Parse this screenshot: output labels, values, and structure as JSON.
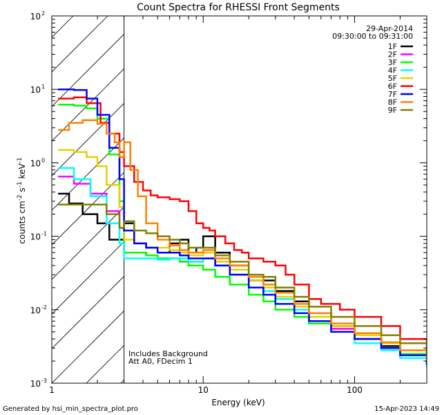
{
  "chart_data": {
    "type": "line",
    "title": "Count Spectra for RHESSI Front Segments",
    "xlabel": "Energy (keV)",
    "ylabel_parts": {
      "pre": "counts cm",
      "e1": "-2",
      "mid1": " s",
      "e2": "-1",
      "mid2": " keV",
      "e3": "-1"
    },
    "x_scale": "log",
    "y_scale": "log",
    "xlim": [
      1,
      300
    ],
    "ylim": [
      0.001,
      100
    ],
    "x_ticks": [
      {
        "value": 1,
        "label": "1"
      },
      {
        "value": 10,
        "label": "10"
      },
      {
        "value": 100,
        "label": "100"
      }
    ],
    "y_ticks": [
      {
        "value": 100,
        "base": "10",
        "exp": "2"
      },
      {
        "value": 10,
        "base": "10",
        "exp": "1"
      },
      {
        "value": 1,
        "base": "10",
        "exp": "0"
      },
      {
        "value": 0.1,
        "base": "10",
        "exp": "-1"
      },
      {
        "value": 0.01,
        "base": "10",
        "exp": "-2"
      },
      {
        "value": 0.001,
        "base": "10",
        "exp": "-3"
      }
    ],
    "hatched_region_kev": [
      1,
      3
    ],
    "date": "29-Apr-2014",
    "time_range": "09:30:00 to 09:31:00",
    "annotations": [
      "Includes Background",
      "Att A0, FDecim 1"
    ],
    "footer_left": "Generated by hsi_min_spectra_plot.pro",
    "footer_right": "15-Apr-2023 14:49",
    "series": [
      {
        "name": "1F",
        "color": "#000000",
        "points": [
          [
            1.1,
            0.38
          ],
          [
            1.3,
            0.28
          ],
          [
            1.6,
            0.2
          ],
          [
            2.0,
            0.15
          ],
          [
            2.4,
            0.09
          ],
          [
            3.0,
            0.15
          ],
          [
            3.5,
            0.08
          ],
          [
            4.2,
            0.07
          ],
          [
            5.0,
            0.06
          ],
          [
            6.0,
            0.08
          ],
          [
            7.0,
            0.09
          ],
          [
            8.0,
            0.06
          ],
          [
            9.0,
            0.07
          ],
          [
            10.0,
            0.1
          ],
          [
            12.0,
            0.06
          ],
          [
            15.0,
            0.04
          ],
          [
            20.0,
            0.025
          ],
          [
            25.0,
            0.025
          ],
          [
            30.0,
            0.018
          ],
          [
            40.0,
            0.013
          ],
          [
            50.0,
            0.009
          ],
          [
            70.0,
            0.006
          ],
          [
            100.0,
            0.004
          ],
          [
            150.0,
            0.0032
          ],
          [
            200.0,
            0.0025
          ],
          [
            300.0,
            0.002
          ]
        ]
      },
      {
        "name": "2F",
        "color": "#ff00ff",
        "points": [
          [
            1.1,
            0.65
          ],
          [
            1.4,
            0.52
          ],
          [
            1.8,
            0.38
          ],
          [
            2.3,
            0.22
          ],
          [
            2.8,
            0.13
          ],
          [
            3.0,
            0.06
          ],
          [
            3.5,
            0.06
          ],
          [
            4.2,
            0.055
          ],
          [
            5.0,
            0.05
          ],
          [
            6.0,
            0.05
          ],
          [
            7.0,
            0.045
          ],
          [
            8.0,
            0.045
          ],
          [
            10.0,
            0.05
          ],
          [
            12.0,
            0.04
          ],
          [
            15.0,
            0.03
          ],
          [
            20.0,
            0.02
          ],
          [
            25.0,
            0.02
          ],
          [
            30.0,
            0.014
          ],
          [
            40.0,
            0.01
          ],
          [
            50.0,
            0.007
          ],
          [
            70.0,
            0.0055
          ],
          [
            100.0,
            0.004
          ],
          [
            150.0,
            0.003
          ],
          [
            200.0,
            0.0025
          ],
          [
            300.0,
            0.0018
          ]
        ]
      },
      {
        "name": "3F",
        "color": "#00ff00",
        "points": [
          [
            1.1,
            6.2
          ],
          [
            1.4,
            6.0
          ],
          [
            1.7,
            5.5
          ],
          [
            2.0,
            4.0
          ],
          [
            2.4,
            1.3
          ],
          [
            2.8,
            0.3
          ],
          [
            3.0,
            0.06
          ],
          [
            3.5,
            0.06
          ],
          [
            4.2,
            0.055
          ],
          [
            5.0,
            0.05
          ],
          [
            6.0,
            0.05
          ],
          [
            7.0,
            0.045
          ],
          [
            8.0,
            0.04
          ],
          [
            10.0,
            0.035
          ],
          [
            12.0,
            0.028
          ],
          [
            15.0,
            0.022
          ],
          [
            20.0,
            0.016
          ],
          [
            25.0,
            0.013
          ],
          [
            30.0,
            0.01
          ],
          [
            40.0,
            0.008
          ],
          [
            50.0,
            0.0065
          ],
          [
            70.0,
            0.005
          ],
          [
            100.0,
            0.004
          ],
          [
            150.0,
            0.003
          ],
          [
            200.0,
            0.0025
          ],
          [
            300.0,
            0.0018
          ]
        ]
      },
      {
        "name": "4F",
        "color": "#00ffff",
        "points": [
          [
            1.1,
            0.85
          ],
          [
            1.4,
            0.6
          ],
          [
            1.8,
            0.35
          ],
          [
            2.3,
            0.15
          ],
          [
            2.8,
            0.08
          ],
          [
            3.0,
            0.05
          ],
          [
            3.5,
            0.05
          ],
          [
            4.2,
            0.05
          ],
          [
            5.0,
            0.048
          ],
          [
            6.0,
            0.05
          ],
          [
            7.0,
            0.05
          ],
          [
            8.0,
            0.045
          ],
          [
            10.0,
            0.05
          ],
          [
            12.0,
            0.04
          ],
          [
            15.0,
            0.03
          ],
          [
            20.0,
            0.02
          ],
          [
            25.0,
            0.018
          ],
          [
            30.0,
            0.014
          ],
          [
            40.0,
            0.01
          ],
          [
            50.0,
            0.007
          ],
          [
            70.0,
            0.005
          ],
          [
            100.0,
            0.0035
          ],
          [
            150.0,
            0.0028
          ],
          [
            200.0,
            0.0022
          ],
          [
            300.0,
            0.0016
          ]
        ]
      },
      {
        "name": "5F",
        "color": "#e8d000",
        "points": [
          [
            1.1,
            1.5
          ],
          [
            1.4,
            1.4
          ],
          [
            1.7,
            1.2
          ],
          [
            2.0,
            0.9
          ],
          [
            2.3,
            0.5
          ],
          [
            2.8,
            0.25
          ],
          [
            3.0,
            0.09
          ],
          [
            3.5,
            0.08
          ],
          [
            4.2,
            0.07
          ],
          [
            5.0,
            0.07
          ],
          [
            6.0,
            0.065
          ],
          [
            7.0,
            0.06
          ],
          [
            8.0,
            0.055
          ],
          [
            10.0,
            0.06
          ],
          [
            12.0,
            0.045
          ],
          [
            15.0,
            0.035
          ],
          [
            20.0,
            0.025
          ],
          [
            25.0,
            0.02
          ],
          [
            30.0,
            0.015
          ],
          [
            40.0,
            0.011
          ],
          [
            50.0,
            0.008
          ],
          [
            70.0,
            0.006
          ],
          [
            100.0,
            0.0045
          ],
          [
            150.0,
            0.0035
          ],
          [
            200.0,
            0.0028
          ],
          [
            300.0,
            0.002
          ]
        ]
      },
      {
        "name": "6F",
        "color": "#ff0000",
        "points": [
          [
            1.1,
            7.5
          ],
          [
            1.4,
            7.8
          ],
          [
            1.7,
            6.5
          ],
          [
            2.1,
            3.5
          ],
          [
            2.4,
            2.5
          ],
          [
            2.8,
            1.4
          ],
          [
            3.0,
            0.9
          ],
          [
            3.5,
            0.55
          ],
          [
            4.0,
            0.42
          ],
          [
            4.5,
            0.36
          ],
          [
            5.0,
            0.34
          ],
          [
            6.0,
            0.32
          ],
          [
            7.0,
            0.3
          ],
          [
            8.0,
            0.22
          ],
          [
            9.0,
            0.15
          ],
          [
            10.0,
            0.13
          ],
          [
            11.0,
            0.12
          ],
          [
            12.0,
            0.1
          ],
          [
            14.0,
            0.08
          ],
          [
            16.0,
            0.065
          ],
          [
            18.0,
            0.06
          ],
          [
            20.0,
            0.05
          ],
          [
            25.0,
            0.045
          ],
          [
            30.0,
            0.04
          ],
          [
            35.0,
            0.03
          ],
          [
            40.0,
            0.022
          ],
          [
            50.0,
            0.014
          ],
          [
            60.0,
            0.012
          ],
          [
            80.0,
            0.01
          ],
          [
            100.0,
            0.008
          ],
          [
            150.0,
            0.006
          ],
          [
            200.0,
            0.004
          ],
          [
            300.0,
            0.003
          ]
        ]
      },
      {
        "name": "7F",
        "color": "#0000ff",
        "points": [
          [
            1.1,
            10.0
          ],
          [
            1.4,
            9.8
          ],
          [
            1.7,
            7.5
          ],
          [
            2.0,
            4.5
          ],
          [
            2.4,
            1.6
          ],
          [
            2.8,
            0.6
          ],
          [
            3.0,
            0.12
          ],
          [
            3.5,
            0.08
          ],
          [
            4.2,
            0.07
          ],
          [
            5.0,
            0.06
          ],
          [
            6.0,
            0.06
          ],
          [
            7.0,
            0.055
          ],
          [
            8.0,
            0.05
          ],
          [
            10.0,
            0.05
          ],
          [
            12.0,
            0.04
          ],
          [
            15.0,
            0.03
          ],
          [
            20.0,
            0.02
          ],
          [
            25.0,
            0.016
          ],
          [
            30.0,
            0.012
          ],
          [
            40.0,
            0.009
          ],
          [
            50.0,
            0.007
          ],
          [
            70.0,
            0.005
          ],
          [
            100.0,
            0.004
          ],
          [
            150.0,
            0.003
          ],
          [
            200.0,
            0.0024
          ],
          [
            300.0,
            0.0018
          ]
        ]
      },
      {
        "name": "8F",
        "color": "#ff8000",
        "points": [
          [
            1.1,
            2.8
          ],
          [
            1.3,
            3.5
          ],
          [
            1.6,
            3.8
          ],
          [
            2.0,
            3.4
          ],
          [
            2.3,
            2.5
          ],
          [
            2.6,
            1.9
          ],
          [
            2.8,
            1.2
          ],
          [
            3.0,
            1.9
          ],
          [
            3.3,
            0.8
          ],
          [
            3.7,
            0.35
          ],
          [
            4.2,
            0.15
          ],
          [
            5.0,
            0.09
          ],
          [
            6.0,
            0.075
          ],
          [
            7.0,
            0.065
          ],
          [
            8.0,
            0.06
          ],
          [
            10.0,
            0.065
          ],
          [
            12.0,
            0.05
          ],
          [
            15.0,
            0.04
          ],
          [
            20.0,
            0.028
          ],
          [
            25.0,
            0.022
          ],
          [
            30.0,
            0.017
          ],
          [
            40.0,
            0.012
          ],
          [
            50.0,
            0.009
          ],
          [
            70.0,
            0.0065
          ],
          [
            100.0,
            0.0048
          ],
          [
            150.0,
            0.0036
          ],
          [
            200.0,
            0.0028
          ],
          [
            300.0,
            0.002
          ]
        ]
      },
      {
        "name": "9F",
        "color": "#808000",
        "points": [
          [
            1.1,
            0.27
          ],
          [
            1.4,
            0.27
          ],
          [
            1.8,
            0.27
          ],
          [
            2.3,
            0.2
          ],
          [
            2.8,
            0.13
          ],
          [
            3.0,
            0.16
          ],
          [
            3.5,
            0.12
          ],
          [
            4.2,
            0.11
          ],
          [
            5.0,
            0.1
          ],
          [
            6.0,
            0.09
          ],
          [
            7.0,
            0.08
          ],
          [
            8.0,
            0.07
          ],
          [
            10.0,
            0.07
          ],
          [
            12.0,
            0.055
          ],
          [
            15.0,
            0.045
          ],
          [
            20.0,
            0.03
          ],
          [
            25.0,
            0.028
          ],
          [
            30.0,
            0.02
          ],
          [
            40.0,
            0.015
          ],
          [
            50.0,
            0.011
          ],
          [
            70.0,
            0.008
          ],
          [
            100.0,
            0.006
          ],
          [
            150.0,
            0.0045
          ],
          [
            200.0,
            0.0035
          ],
          [
            300.0,
            0.0025
          ]
        ]
      }
    ]
  }
}
